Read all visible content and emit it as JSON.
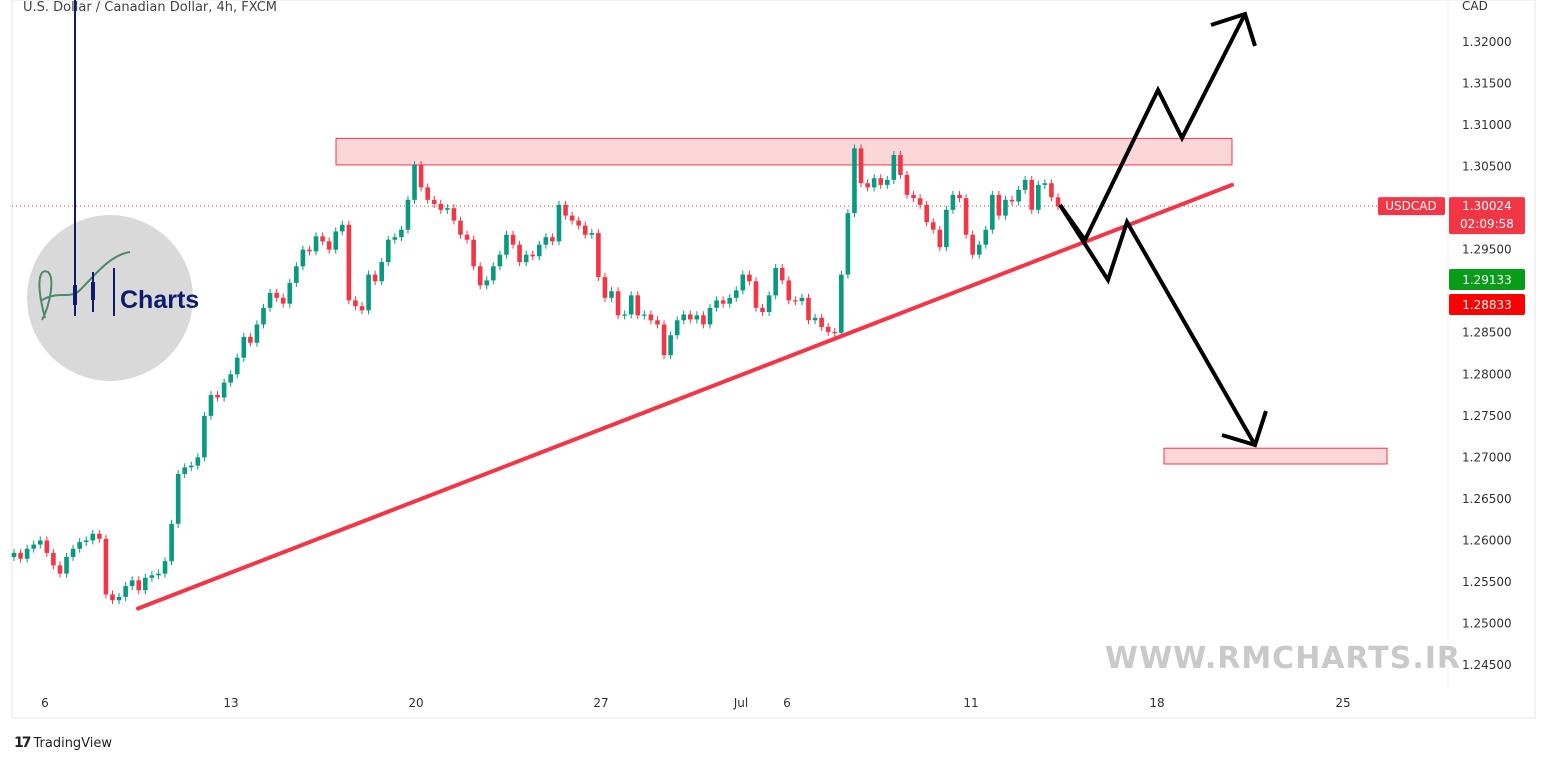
{
  "header": {
    "title": "U.S. Dollar / Canadian Dollar, 4h, FXCM"
  },
  "footer": {
    "brand": "TradingView"
  },
  "logo": {
    "text": "Charts",
    "letters": "RM"
  },
  "watermark": "WWW.RMCHARTS.IR",
  "colors": {
    "up": "#089981",
    "down": "#f23645",
    "zone": "#f23645",
    "trend": "#f23645",
    "projection": "#000000",
    "buy": "#089c19",
    "sell": "#ff0000"
  },
  "chart_data": {
    "type": "candlestick",
    "symbol": "USDCAD",
    "currency_label": "CAD",
    "ylim": [
      1.2415,
      1.3245
    ],
    "y_ticks": [
      "1.32000",
      "1.31500",
      "1.31000",
      "1.30500",
      "1.29500",
      "1.28500",
      "1.28000",
      "1.27500",
      "1.27000",
      "1.26500",
      "1.26000",
      "1.25500",
      "1.25000",
      "1.24500"
    ],
    "x_ticks": [
      "6",
      "13",
      "20",
      "27",
      "Jul",
      "6",
      "11",
      "18",
      "25"
    ],
    "last_price": "1.30024",
    "countdown": "02:09:58",
    "bid_price": "1.29133",
    "ask_price": "1.28833",
    "closes": [
      1.2585,
      1.2578,
      1.259,
      1.2595,
      1.26,
      1.2585,
      1.257,
      1.256,
      1.258,
      1.259,
      1.2598,
      1.26,
      1.2608,
      1.2602,
      1.2535,
      1.2528,
      1.2532,
      1.2545,
      1.2552,
      1.254,
      1.2555,
      1.2558,
      1.256,
      1.2575,
      1.262,
      1.268,
      1.2688,
      1.269,
      1.27,
      1.275,
      1.2775,
      1.2772,
      1.279,
      1.28,
      1.282,
      1.2845,
      1.2838,
      1.286,
      1.288,
      1.2898,
      1.2892,
      1.2885,
      1.291,
      1.293,
      1.295,
      1.2948,
      1.2966,
      1.296,
      1.295,
      1.2972,
      1.298,
      1.2889,
      1.2882,
      1.2877,
      1.292,
      1.2912,
      1.2935,
      1.2962,
      1.2965,
      1.2974,
      1.301,
      1.3052,
      1.3025,
      1.301,
      1.3005,
      1.2998,
      1.3,
      1.2985,
      1.2968,
      1.2962,
      1.293,
      1.2907,
      1.2913,
      1.293,
      1.2944,
      1.2968,
      1.2956,
      1.2935,
      1.2944,
      1.2942,
      1.2956,
      1.2965,
      1.296,
      1.3004,
      1.2991,
      1.2985,
      1.2979,
      1.2968,
      1.297,
      1.2917,
      1.2892,
      1.29,
      1.2871,
      1.2872,
      1.2895,
      1.2871,
      1.2872,
      1.2865,
      1.286,
      1.2823,
      1.2847,
      1.2865,
      1.2872,
      1.2866,
      1.2871,
      1.286,
      1.288,
      1.2889,
      1.2885,
      1.2892,
      1.2901,
      1.292,
      1.2912,
      1.288,
      1.2875,
      1.2895,
      1.2928,
      1.2913,
      1.2889,
      1.2888,
      1.2892,
      1.2865,
      1.2868,
      1.2857,
      1.2851,
      1.285,
      1.292,
      1.2994,
      1.3072,
      1.303,
      1.3025,
      1.3036,
      1.3028,
      1.3034,
      1.3064,
      1.304,
      1.3016,
      1.3012,
      1.3004,
      1.2983,
      1.2974,
      1.2953,
      1.2998,
      1.3016,
      1.3012,
      1.2968,
      1.2944,
      1.2956,
      1.2974,
      1.3016,
      1.2991,
      1.301,
      1.3008,
      1.3022,
      1.3034,
      1.2998,
      1.3028,
      1.303,
      1.3013,
      1.30024
    ],
    "open_first": 1.258,
    "resistance_zone": [
      1.3052,
      1.3084
    ],
    "target_zone": [
      1.2692,
      1.2711
    ],
    "trendline": [
      1.2518,
      1.3028
    ],
    "grid": false
  }
}
